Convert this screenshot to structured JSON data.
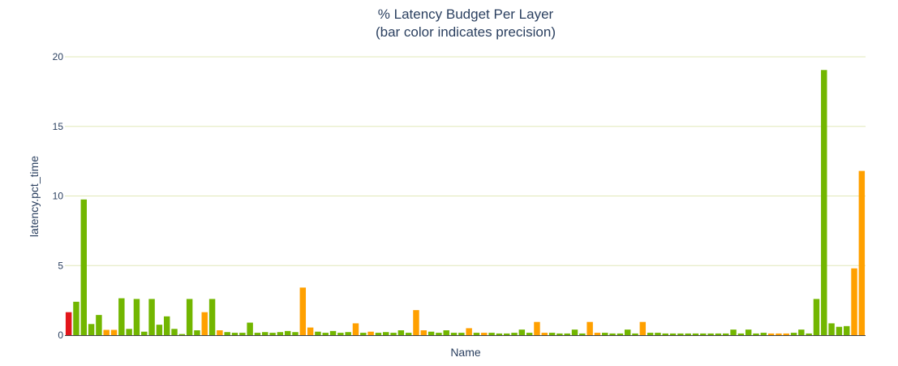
{
  "chart_data": {
    "type": "bar",
    "title": "% Latency Budget Per Layer",
    "subtitle": "(bar color indicates precision)",
    "xlabel": "Name",
    "ylabel": "latency.pct_time",
    "ylim": [
      0,
      20
    ],
    "yticks": [
      0,
      5,
      10,
      15,
      20
    ],
    "grid": true,
    "show_x_tick_labels": false,
    "colors": {
      "red": "#e3161b",
      "green": "#72b600",
      "orange": "#ffa000",
      "grid": "#e1e8b8",
      "axis": "#444444"
    },
    "values": [
      1.65,
      2.4,
      9.75,
      0.8,
      1.45,
      0.38,
      0.38,
      2.65,
      0.45,
      2.6,
      0.25,
      2.6,
      0.75,
      1.35,
      0.45,
      0.08,
      2.6,
      0.35,
      1.65,
      2.6,
      0.35,
      0.22,
      0.17,
      0.17,
      0.9,
      0.17,
      0.22,
      0.17,
      0.22,
      0.3,
      0.22,
      3.42,
      0.55,
      0.25,
      0.17,
      0.3,
      0.17,
      0.22,
      0.85,
      0.17,
      0.25,
      0.17,
      0.22,
      0.17,
      0.35,
      0.17,
      1.8,
      0.35,
      0.25,
      0.17,
      0.35,
      0.17,
      0.17,
      0.5,
      0.17,
      0.17,
      0.17,
      0.12,
      0.12,
      0.17,
      0.4,
      0.17,
      0.95,
      0.17,
      0.17,
      0.12,
      0.12,
      0.4,
      0.12,
      0.95,
      0.17,
      0.17,
      0.12,
      0.12,
      0.4,
      0.12,
      0.95,
      0.17,
      0.17,
      0.12,
      0.12,
      0.12,
      0.12,
      0.12,
      0.12,
      0.12,
      0.12,
      0.12,
      0.4,
      0.12,
      0.4,
      0.12,
      0.17,
      0.12,
      0.12,
      0.12,
      0.17,
      0.4,
      0.12,
      2.6,
      19.05,
      0.85,
      0.6,
      0.65,
      4.8,
      11.8
    ],
    "bar_colors": [
      "red",
      "green",
      "green",
      "green",
      "green",
      "orange",
      "orange",
      "green",
      "green",
      "green",
      "green",
      "green",
      "green",
      "green",
      "green",
      "green",
      "green",
      "green",
      "orange",
      "green",
      "orange",
      "green",
      "green",
      "green",
      "green",
      "green",
      "green",
      "green",
      "green",
      "green",
      "green",
      "orange",
      "orange",
      "green",
      "green",
      "green",
      "green",
      "green",
      "orange",
      "green",
      "orange",
      "green",
      "green",
      "green",
      "green",
      "green",
      "orange",
      "orange",
      "green",
      "green",
      "green",
      "green",
      "green",
      "orange",
      "green",
      "orange",
      "green",
      "green",
      "green",
      "green",
      "green",
      "green",
      "orange",
      "orange",
      "green",
      "green",
      "green",
      "green",
      "green",
      "orange",
      "orange",
      "green",
      "green",
      "green",
      "green",
      "green",
      "orange",
      "green",
      "green",
      "green",
      "green",
      "green",
      "green",
      "green",
      "green",
      "green",
      "green",
      "green",
      "green",
      "green",
      "green",
      "green",
      "green",
      "orange",
      "orange",
      "orange",
      "green",
      "green",
      "green",
      "green",
      "green",
      "green",
      "green",
      "green",
      "orange",
      "orange"
    ]
  }
}
